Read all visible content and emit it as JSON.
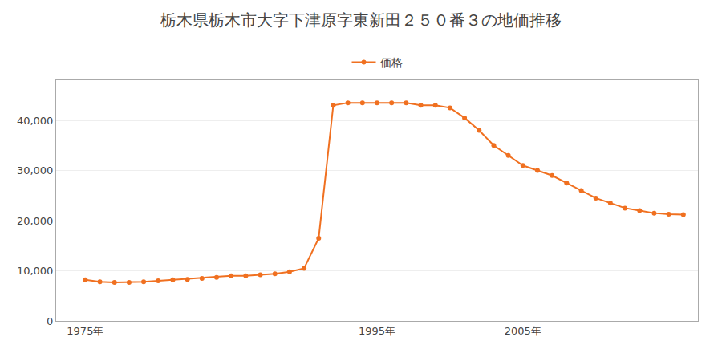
{
  "chart_data": {
    "type": "line",
    "title": "栃木県栃木市大字下津原字東新田２５０番３の地価推移",
    "x": [
      1975,
      1976,
      1977,
      1978,
      1979,
      1980,
      1981,
      1982,
      1983,
      1984,
      1985,
      1986,
      1987,
      1988,
      1989,
      1990,
      1991,
      1992,
      1993,
      1994,
      1995,
      1996,
      1997,
      1998,
      1999,
      2000,
      2001,
      2002,
      2003,
      2004,
      2005,
      2006,
      2007,
      2008,
      2009,
      2010,
      2011,
      2012,
      2013,
      2014,
      2015,
      2016
    ],
    "series": [
      {
        "name": "価格",
        "color": "#f07020",
        "marker": "circle",
        "values": [
          8200,
          7800,
          7700,
          7700,
          7800,
          8000,
          8200,
          8300,
          8500,
          8700,
          9000,
          9000,
          9200,
          9400,
          9800,
          10500,
          16500,
          43000,
          43500,
          43500,
          43500,
          43500,
          43500,
          43000,
          43000,
          42500,
          40500,
          38000,
          35000,
          33000,
          31000,
          30000,
          29000,
          27500,
          26000,
          24500,
          23500,
          22500,
          22000,
          21500,
          21300,
          21200
        ]
      }
    ],
    "xlim": [
      1973,
      2017
    ],
    "xticks": [
      {
        "value": 1975,
        "label": "1975年"
      },
      {
        "value": 1995,
        "label": "1995年"
      },
      {
        "value": 2005,
        "label": "2005年"
      }
    ],
    "ylim": [
      0,
      48000
    ],
    "yticks": [
      0,
      {
        "value": 10000,
        "label": "10,000"
      },
      {
        "value": 20000,
        "label": "20,000"
      },
      {
        "value": 30000,
        "label": "30,000"
      },
      {
        "value": 40000,
        "label": "40,000"
      }
    ],
    "grid": "y",
    "legend": "top"
  }
}
